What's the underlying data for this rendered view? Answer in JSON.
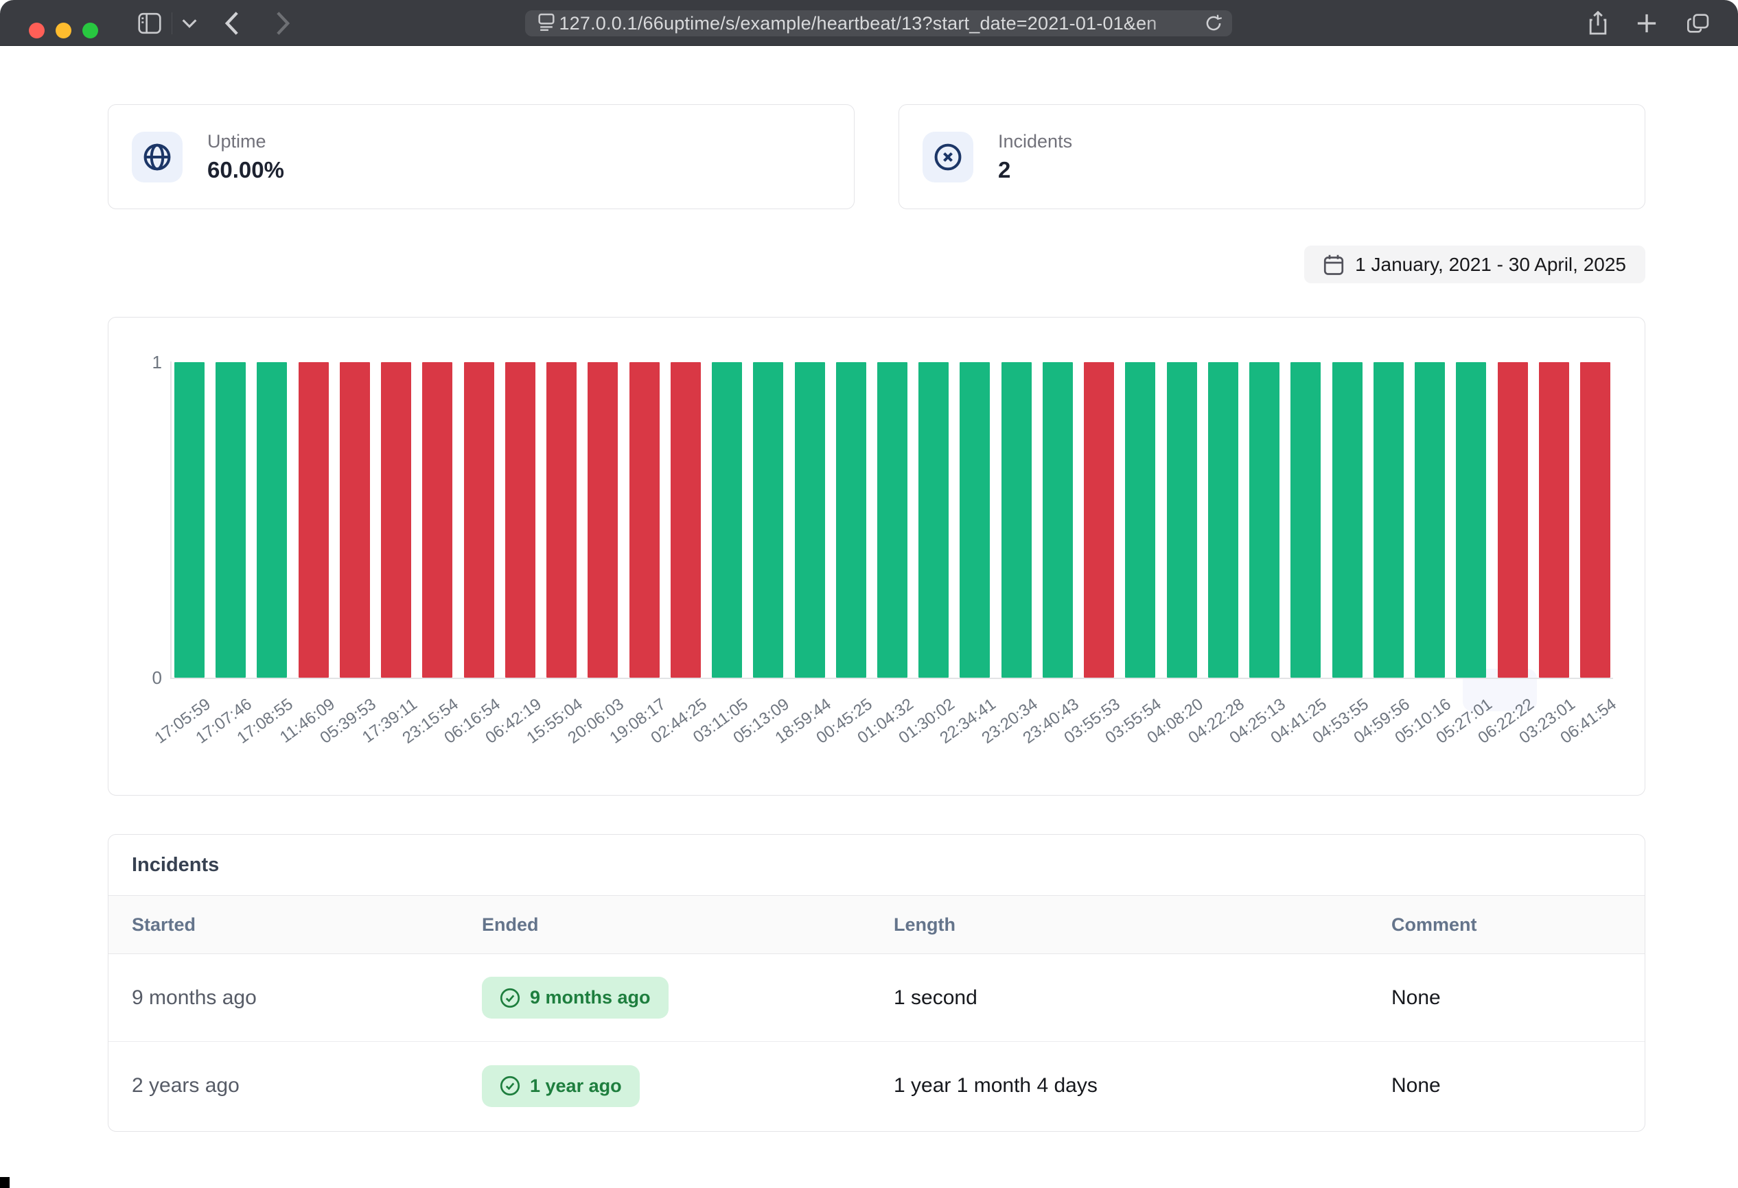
{
  "browser": {
    "url": "127.0.0.1/66uptime/s/example/heartbeat/13?start_date=2021-01-01&en",
    "traffic_lights": {
      "close": "#ff5f57",
      "minimize": "#febc2e",
      "zoom": "#28c840"
    }
  },
  "stats": {
    "uptime": {
      "label": "Uptime",
      "value": "60.00%",
      "icon": "globe-icon"
    },
    "incidents": {
      "label": "Incidents",
      "value": "2",
      "icon": "x-circle-icon"
    }
  },
  "date_range": {
    "label": "1 January, 2021 - 30 April, 2025",
    "icon": "calendar-icon"
  },
  "chart_data": {
    "type": "bar",
    "title": "",
    "xlabel": "",
    "ylabel": "",
    "ylim": [
      0,
      1
    ],
    "yticks": [
      "1",
      "0"
    ],
    "grid": false,
    "legend": "none",
    "categories": [
      "17:05:59",
      "17:07:46",
      "17:08:55",
      "11:46:09",
      "05:39:53",
      "17:39:11",
      "23:15:54",
      "06:16:54",
      "06:42:19",
      "15:55:04",
      "20:06:03",
      "19:08:17",
      "02:44:25",
      "03:11:05",
      "05:13:09",
      "18:59:44",
      "00:45:25",
      "01:04:32",
      "01:30:02",
      "22:34:41",
      "23:20:34",
      "23:40:43",
      "03:55:53",
      "03:55:54",
      "04:08:20",
      "04:22:28",
      "04:25:13",
      "04:41:25",
      "04:53:55",
      "04:59:56",
      "05:10:16",
      "05:27:01",
      "06:22:22",
      "03:23:01",
      "06:41:54"
    ],
    "values": [
      1,
      1,
      1,
      1,
      1,
      1,
      1,
      1,
      1,
      1,
      1,
      1,
      1,
      1,
      1,
      1,
      1,
      1,
      1,
      1,
      1,
      1,
      1,
      1,
      1,
      1,
      1,
      1,
      1,
      1,
      1,
      1,
      1,
      1,
      1
    ],
    "statuses": [
      "up",
      "up",
      "up",
      "down",
      "down",
      "down",
      "down",
      "down",
      "down",
      "down",
      "down",
      "down",
      "down",
      "up",
      "up",
      "up",
      "up",
      "up",
      "up",
      "up",
      "up",
      "up",
      "down",
      "up",
      "up",
      "up",
      "up",
      "up",
      "up",
      "up",
      "up",
      "up",
      "down",
      "down",
      "down"
    ],
    "colors": {
      "up": "#17b880",
      "down": "#d93845"
    }
  },
  "incidents_table": {
    "title": "Incidents",
    "columns": [
      "Started",
      "Ended",
      "Length",
      "Comment"
    ],
    "ended_badge_icon": "check-circle-icon",
    "badge_colors": {
      "background": "#d3f3dd",
      "text": "#1e7e3e"
    },
    "rows": [
      {
        "started": "9 months ago",
        "ended": "9 months ago",
        "length": "1 second",
        "comment": "None"
      },
      {
        "started": "2 years ago",
        "ended": "1 year ago",
        "length": "1 year 1 month 4 days",
        "comment": "None"
      }
    ]
  }
}
